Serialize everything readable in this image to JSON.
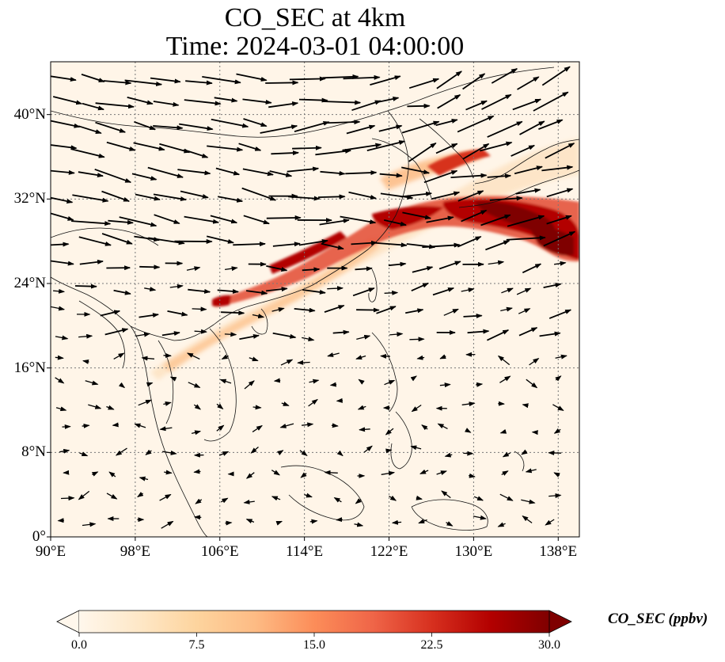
{
  "title": {
    "line1": "CO_SEC at 4km",
    "line2": "Time: 2024-03-01 04:00:00"
  },
  "map": {
    "lon_range": [
      90,
      140
    ],
    "lat_range": [
      0,
      45
    ],
    "lon_ticks": [
      {
        "value": 90,
        "label": "90°E"
      },
      {
        "value": 98,
        "label": "98°E"
      },
      {
        "value": 106,
        "label": "106°E"
      },
      {
        "value": 114,
        "label": "114°E"
      },
      {
        "value": 122,
        "label": "122°E"
      },
      {
        "value": 130,
        "label": "130°E"
      },
      {
        "value": 138,
        "label": "138°E"
      }
    ],
    "lat_ticks": [
      {
        "value": 0,
        "label": "0°"
      },
      {
        "value": 8,
        "label": "8°N"
      },
      {
        "value": 16,
        "label": "16°N"
      },
      {
        "value": 24,
        "label": "24°N"
      },
      {
        "value": 32,
        "label": "32°N"
      },
      {
        "value": 40,
        "label": "40°N"
      }
    ],
    "gridlines": true,
    "background_color": "#fff5e8",
    "plume": {
      "description_level": "high CO_SEC band from northern Vietnam toward southern Japan",
      "colors": [
        "#fde0b7",
        "#fdae6b",
        "#e34a33",
        "#b30000",
        "#7f0000"
      ]
    },
    "wind_vectors": "westerly flow strongest north of 24°N, weak scattered flow to the south"
  },
  "colorbar": {
    "label": "CO_SEC (ppbv)",
    "min": 0.0,
    "max": 30.0,
    "extend": "both",
    "cmap": "OrRd",
    "ticks": [
      {
        "value": 0.0,
        "label": "0.0"
      },
      {
        "value": 7.5,
        "label": "7.5"
      },
      {
        "value": 15.0,
        "label": "15.0"
      },
      {
        "value": 22.5,
        "label": "22.5"
      },
      {
        "value": 30.0,
        "label": "30.0"
      }
    ],
    "stops": [
      "#fff7ec",
      "#fee8c8",
      "#fdd49e",
      "#fdbb84",
      "#fc8d59",
      "#ef6548",
      "#d7301f",
      "#b30000",
      "#7f0000"
    ]
  }
}
